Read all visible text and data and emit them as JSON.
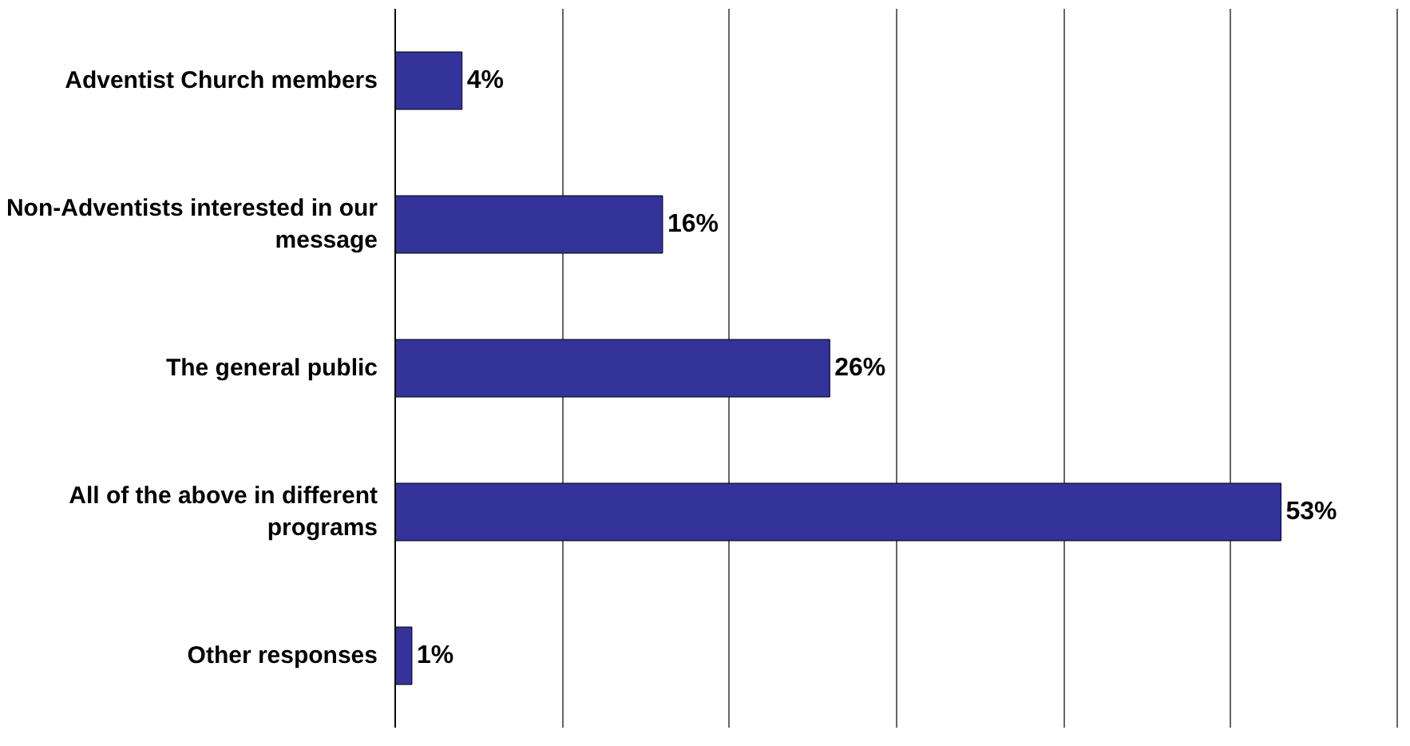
{
  "chart_data": {
    "type": "bar",
    "orientation": "horizontal",
    "categories": [
      "Adventist Church members",
      "Non-Adventists interested in our message",
      "The general public",
      "All of the above in different programs",
      "Other responses"
    ],
    "values": [
      4,
      16,
      26,
      53,
      1
    ],
    "value_labels": [
      "4%",
      "16%",
      "26%",
      "53%",
      "1%"
    ],
    "color": "#333399",
    "xlim": [
      0,
      60
    ],
    "xticks": [
      {
        "value": 0,
        "label": null
      },
      {
        "value": 10,
        "label": null
      },
      {
        "value": 20,
        "label": null
      },
      {
        "value": 30,
        "label": null
      },
      {
        "value": 40,
        "label": null
      },
      {
        "value": 50,
        "label": null
      },
      {
        "value": 60,
        "label": null
      }
    ],
    "grid": "x",
    "tick_labels": "y"
  }
}
